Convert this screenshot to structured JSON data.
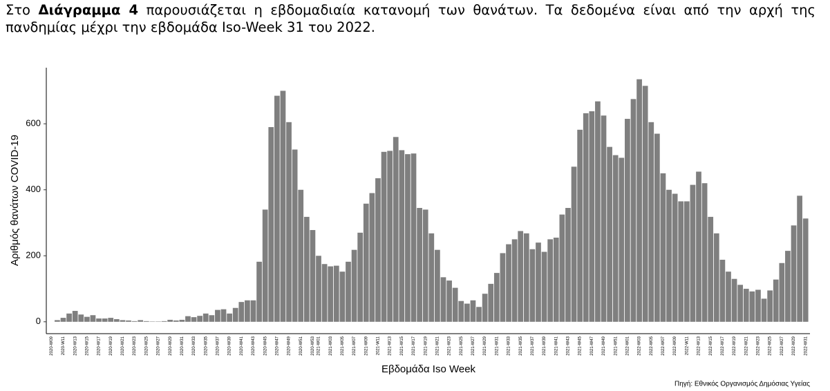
{
  "paragraph": {
    "text_before": "Στο ",
    "bold": "Διάγραμμα 4",
    "text_after": " παρουσιάζεται η εβδομαδιαία κατανομή των θανάτων.  Τα δεδομένα είναι από την αρχή της πανδημίας μέχρι την εβδομάδα Iso-Week 31 του 2022."
  },
  "chart_data": {
    "type": "bar",
    "x_label": "Εβδομάδα Iso Week",
    "y_label": "Αριθμός θανάτων COVID-19",
    "source": "Πηγή: Εθνικός Οργανισμός Δημόσιας Υγείας",
    "color": "#7f7f7f",
    "categories": [
      "2020-W09",
      null,
      "2020-W11",
      null,
      "2020-W13",
      null,
      "2020-W15",
      null,
      "2020-W17",
      null,
      "2020-W19",
      null,
      "2020-W21",
      null,
      "2020-W23",
      null,
      "2020-W25",
      null,
      "2020-W27",
      null,
      "2020-W29",
      null,
      "2020-W31",
      null,
      "2020-W33",
      null,
      "2020-W35",
      null,
      "2020-W37",
      null,
      "2020-W39",
      null,
      "2020-W41",
      null,
      "2020-W43",
      null,
      "2020-W45",
      null,
      "2020-W47",
      null,
      "2020-W49",
      null,
      "2020-W51",
      null,
      "2020-W53",
      "2021-W01",
      null,
      "2021-W03",
      null,
      "2021-W05",
      null,
      "2021-W07",
      null,
      "2021-W09",
      null,
      "2021-W11",
      null,
      "2021-W13",
      null,
      "2021-W15",
      null,
      "2021-W17",
      null,
      "2021-W19",
      null,
      "2021-W21",
      null,
      "2021-W23",
      null,
      "2021-W25",
      null,
      "2021-W27",
      null,
      "2021-W29",
      null,
      "2021-W31",
      null,
      "2021-W33",
      null,
      "2021-W35",
      null,
      "2021-W37",
      null,
      "2021-W39",
      null,
      "2021-W41",
      null,
      "2021-W43",
      null,
      "2021-W45",
      null,
      "2021-W47",
      null,
      "2021-W49",
      null,
      "2021-W51",
      null,
      "2022-W01",
      null,
      "2022-W03",
      null,
      "2022-W05",
      null,
      "2022-W07",
      null,
      "2022-W09",
      null,
      "2022-W11",
      null,
      "2022-W13",
      null,
      "2022-W15",
      null,
      "2022-W17",
      null,
      "2022-W19",
      null,
      "2022-W21",
      null,
      "2022-W23",
      null,
      "2022-W25",
      null,
      "2022-W27",
      null,
      "2022-W29",
      null,
      "2022-W31"
    ],
    "values": [
      0,
      5,
      12,
      25,
      33,
      22,
      15,
      20,
      10,
      10,
      12,
      8,
      5,
      4,
      2,
      5,
      2,
      1,
      1,
      2,
      6,
      4,
      6,
      17,
      14,
      18,
      25,
      20,
      36,
      38,
      25,
      42,
      60,
      65,
      65,
      182,
      340,
      590,
      685,
      700,
      605,
      522,
      400,
      318,
      278,
      200,
      175,
      168,
      170,
      152,
      182,
      218,
      270,
      358,
      390,
      435,
      515,
      518,
      560,
      520,
      508,
      510,
      345,
      340,
      268,
      218,
      135,
      125,
      103,
      63,
      55,
      65,
      45,
      85,
      115,
      148,
      208,
      235,
      250,
      275,
      268,
      220,
      240,
      212,
      250,
      255,
      325,
      345,
      470,
      582,
      632,
      638,
      668,
      625,
      530,
      505,
      497,
      615,
      675,
      735,
      715,
      605,
      570,
      450,
      400,
      388,
      365,
      365,
      415,
      455,
      420,
      318,
      268,
      188,
      152,
      130,
      112,
      100,
      92,
      97,
      70,
      95,
      128,
      178,
      215,
      292,
      382,
      313
    ],
    "ylim": [
      -36,
      770
    ],
    "yticks": [
      0,
      200,
      400,
      600
    ]
  }
}
